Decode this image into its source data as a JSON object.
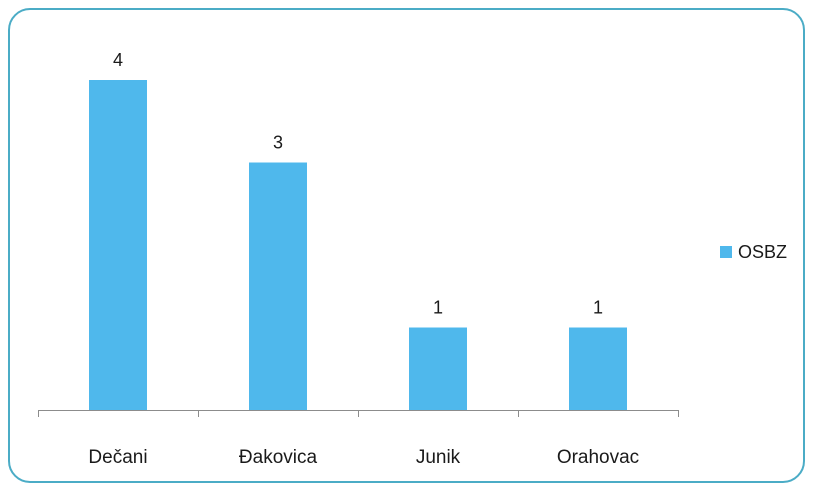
{
  "chart_data": {
    "type": "bar",
    "categories": [
      "Dečani",
      "Đakovica",
      "Junik",
      "Orahovac"
    ],
    "series": [
      {
        "name": "OSBZ",
        "values": [
          4,
          3,
          1,
          1
        ],
        "color": "#4fb8ec"
      }
    ],
    "ylim": [
      0,
      4
    ],
    "grid": false,
    "legend_position": "right",
    "frame_color": "#4bacc6"
  }
}
